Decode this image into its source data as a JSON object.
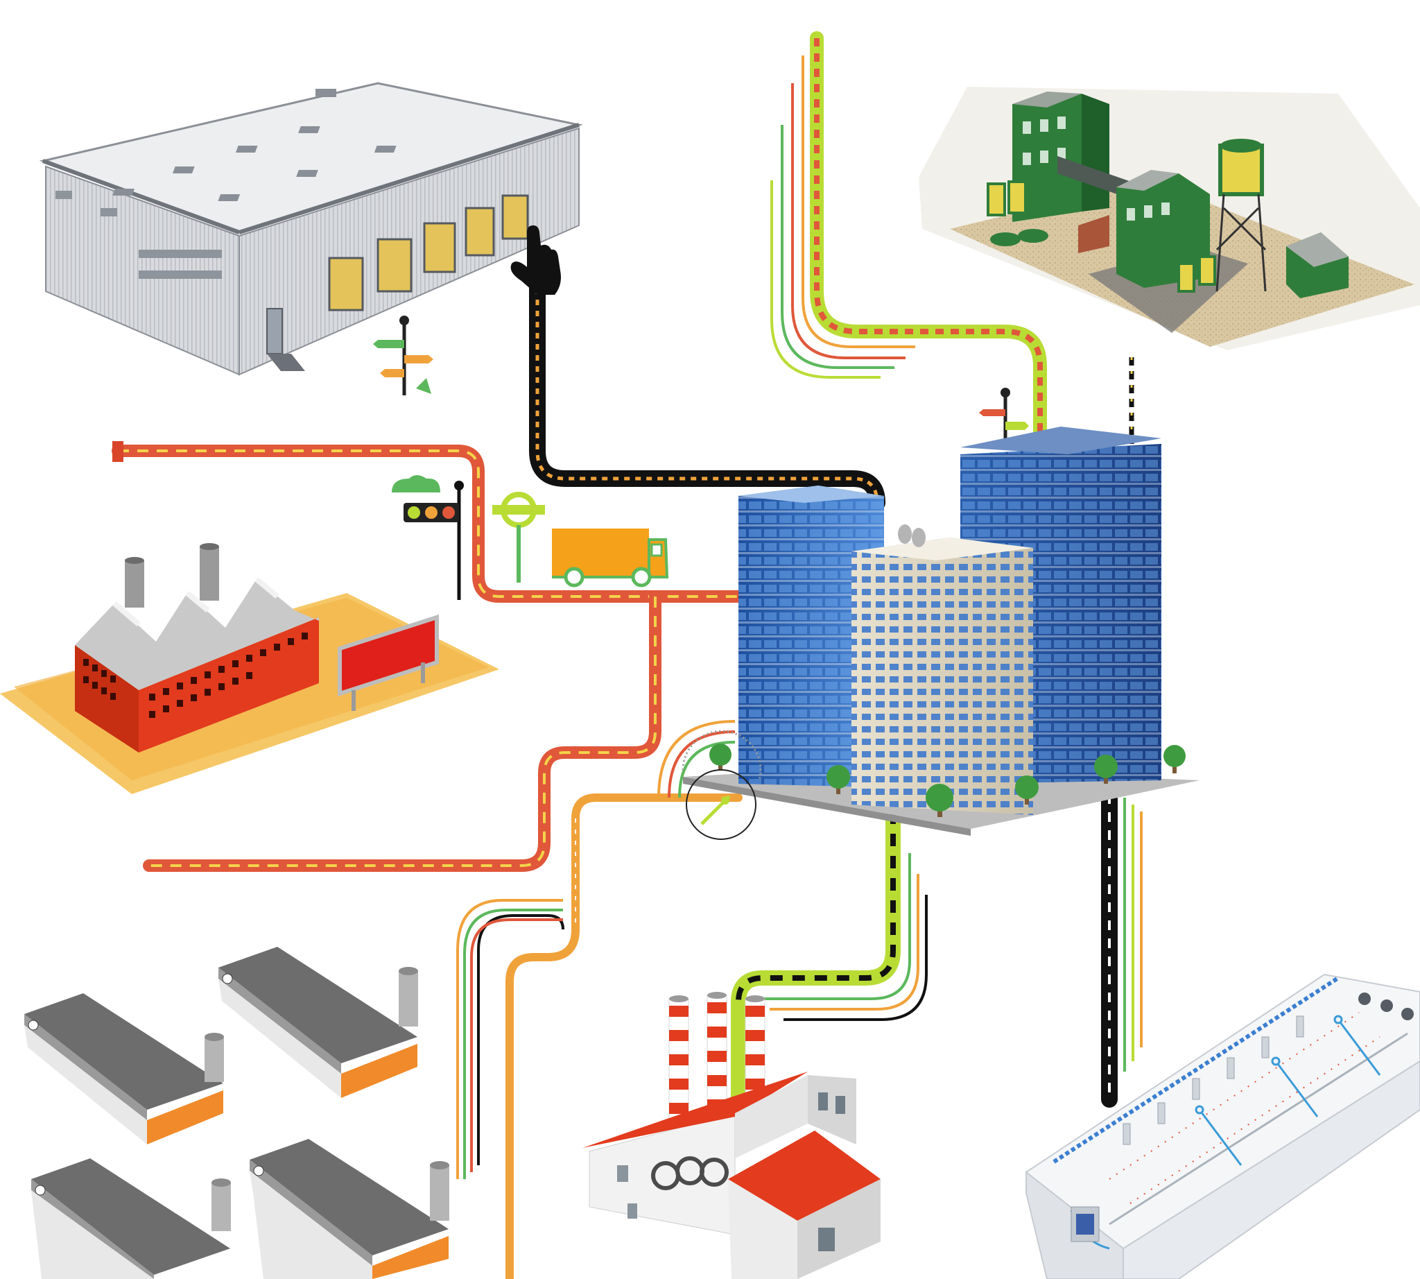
{
  "diagram": {
    "nodes": [
      {
        "id": "warehouse",
        "icon": "warehouse-icon"
      },
      {
        "id": "processing-plant",
        "icon": "industrial-plant-icon"
      },
      {
        "id": "red-factory",
        "icon": "factory-icon"
      },
      {
        "id": "office-hub",
        "icon": "office-buildings-icon"
      },
      {
        "id": "livestock-barns",
        "icon": "barn-cluster-icon"
      },
      {
        "id": "power-factory",
        "icon": "smokestack-factory-icon"
      },
      {
        "id": "poultry-house",
        "icon": "poultry-house-icon"
      }
    ],
    "decorations": [
      {
        "icon": "pointing-hand-icon"
      },
      {
        "icon": "signpost-icon"
      },
      {
        "icon": "traffic-light-icon"
      },
      {
        "icon": "bus-stop-sign-icon"
      },
      {
        "icon": "delivery-truck-icon"
      },
      {
        "icon": "speed-gauge-icon"
      }
    ],
    "colors": {
      "road_red": "#e0573a",
      "road_dash": "#f4d34a",
      "road_black": "#111111",
      "road_lime": "#b9dc35",
      "road_orange": "#f0a23a",
      "stripe_green": "#5cb85c",
      "glass_blue": "#2e64b8",
      "factory_red": "#e23b1e",
      "barn_roof": "#6d6d6d",
      "plant_green": "#2f7d3a"
    }
  }
}
